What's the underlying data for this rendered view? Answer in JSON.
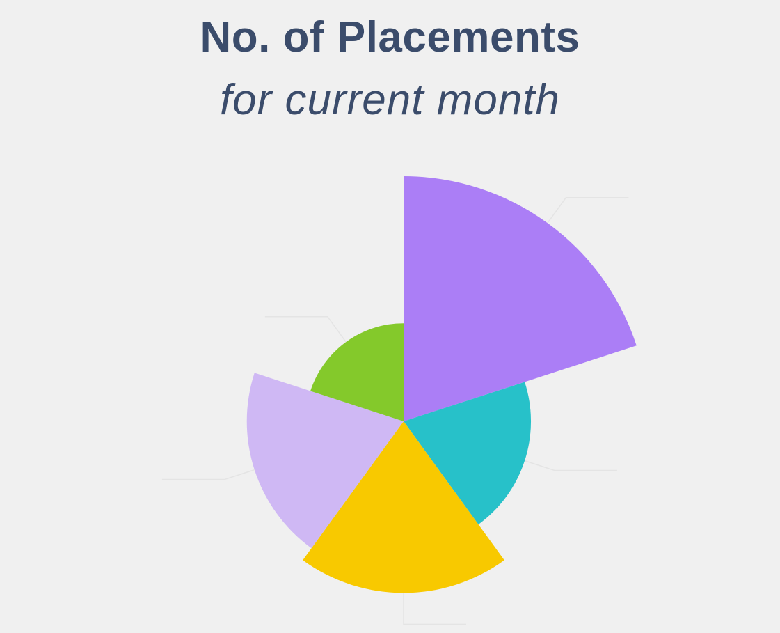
{
  "chart_data": {
    "type": "polar-area",
    "title": "No. of Placements",
    "subtitle": "for current month",
    "slices": [
      {
        "value": 100,
        "color": "#ab7ef6"
      },
      {
        "value": 52,
        "color": "#27c1c9"
      },
      {
        "value": 70,
        "color": "#f8c900"
      },
      {
        "value": 64,
        "color": "#cfb8f4"
      },
      {
        "value": 40,
        "color": "#84c92b"
      }
    ],
    "background": "#f0f0f0",
    "text_color": "#3b4c6b"
  }
}
